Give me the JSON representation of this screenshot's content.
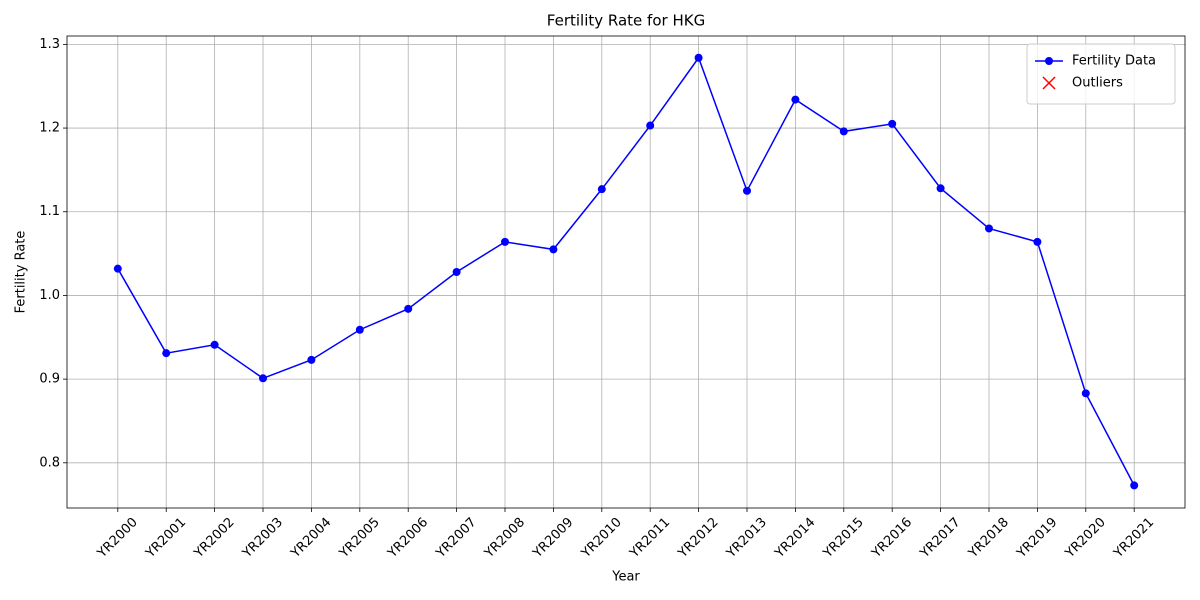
{
  "chart_data": {
    "type": "line",
    "title": "Fertility Rate for HKG",
    "xlabel": "Year",
    "ylabel": "Fertility Rate",
    "categories": [
      "YR2000",
      "YR2001",
      "YR2002",
      "YR2003",
      "YR2004",
      "YR2005",
      "YR2006",
      "YR2007",
      "YR2008",
      "YR2009",
      "YR2010",
      "YR2011",
      "YR2012",
      "YR2013",
      "YR2014",
      "YR2015",
      "YR2016",
      "YR2017",
      "YR2018",
      "YR2019",
      "YR2020",
      "YR2021"
    ],
    "series": [
      {
        "name": "Fertility Data",
        "color": "#0000ff",
        "marker": "o",
        "values": [
          1.032,
          0.931,
          0.941,
          0.901,
          0.923,
          0.959,
          0.984,
          1.028,
          1.064,
          1.055,
          1.127,
          1.203,
          1.284,
          1.125,
          1.234,
          1.196,
          1.205,
          1.128,
          1.08,
          1.064,
          0.883,
          0.773
        ]
      },
      {
        "name": "Outliers",
        "color": "#ff0000",
        "marker": "x",
        "values": [
          null,
          null,
          null,
          null,
          null,
          null,
          null,
          null,
          null,
          null,
          null,
          null,
          null,
          null,
          null,
          null,
          null,
          null,
          null,
          null,
          null,
          null
        ]
      }
    ],
    "ylim": [
      0.746,
      1.31
    ],
    "yticks": [
      0.8,
      0.9,
      {
        "value": 1,
        "label": "1.0"
      },
      1.1,
      1.2,
      1.3
    ],
    "grid": true,
    "legend": "upper right"
  }
}
